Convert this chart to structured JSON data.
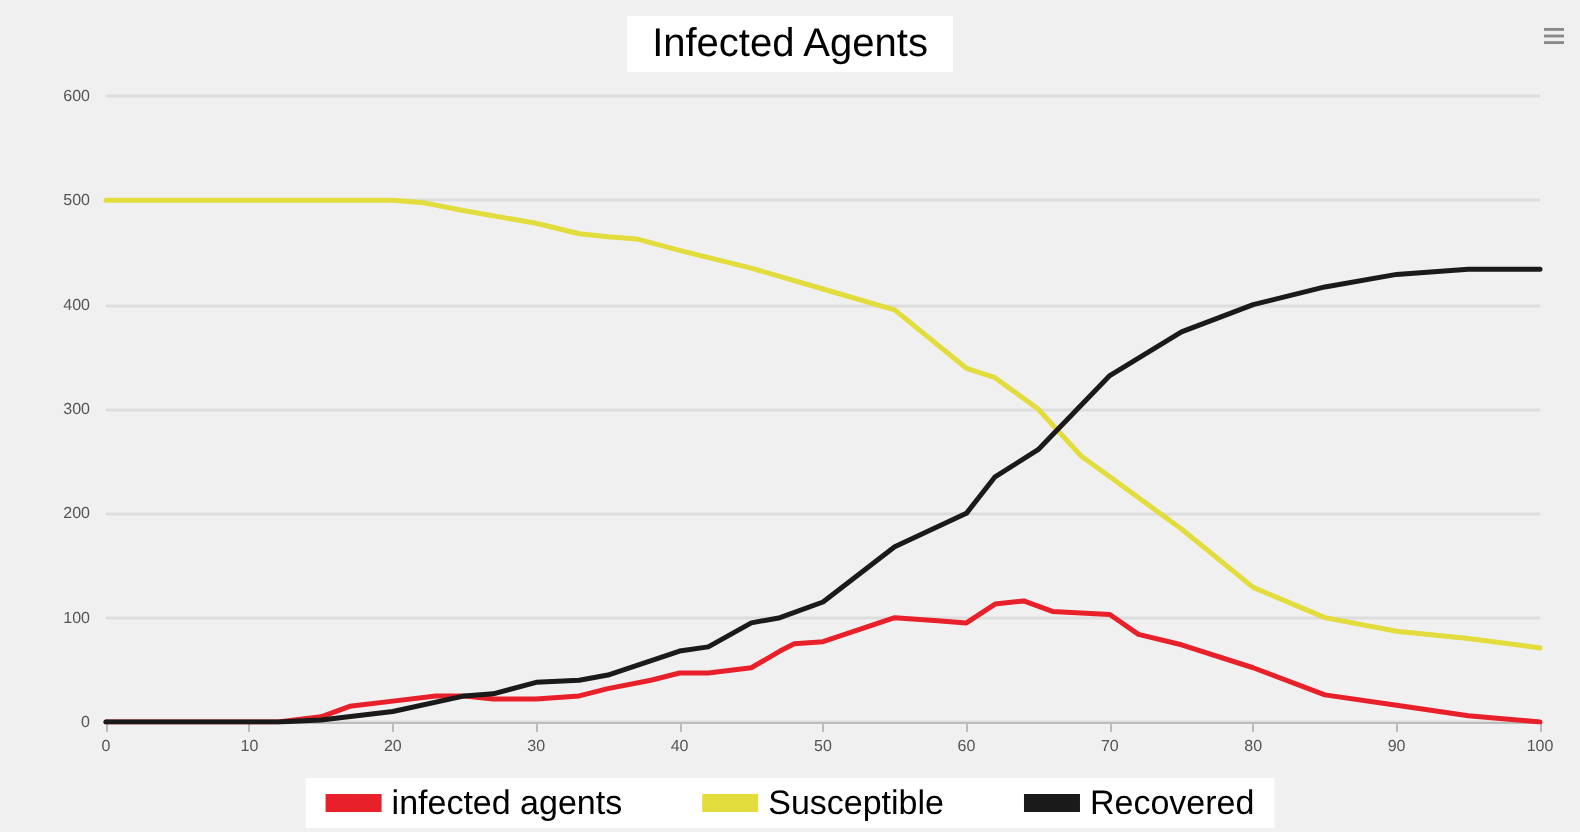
{
  "chart_data": {
    "type": "line",
    "title": "Infected Agents",
    "xlim": [
      0,
      100
    ],
    "xticks": [
      0,
      10,
      20,
      30,
      40,
      50,
      60,
      70,
      80,
      90,
      100
    ],
    "ylim": [
      0,
      600
    ],
    "yticks": [
      0,
      100,
      200,
      300,
      400,
      500,
      600
    ],
    "grid": "y",
    "legend": "bottom",
    "marker": "none",
    "line_style": "solid",
    "series": [
      {
        "name": "infected agents",
        "color": "#e8202a",
        "x": [
          0,
          12,
          15,
          17,
          20,
          23,
          25,
          27,
          30,
          33,
          35,
          38,
          40,
          42,
          45,
          47,
          48,
          50,
          55,
          58,
          60,
          62,
          64,
          66,
          70,
          72,
          75,
          80,
          85,
          90,
          95,
          100
        ],
        "values": [
          0,
          0,
          5,
          15,
          20,
          25,
          25,
          22,
          22,
          25,
          32,
          40,
          47,
          47,
          52,
          68,
          75,
          77,
          100,
          97,
          95,
          113,
          116,
          106,
          103,
          84,
          74,
          52,
          26,
          16,
          6,
          0
        ]
      },
      {
        "name": "Susceptible",
        "color": "#e2dc3c",
        "x": [
          0,
          10,
          20,
          22,
          25,
          30,
          33,
          35,
          37,
          40,
          45,
          50,
          55,
          60,
          62,
          65,
          68,
          70,
          75,
          80,
          85,
          90,
          95,
          100
        ],
        "values": [
          500,
          500,
          500,
          498,
          490,
          478,
          468,
          465,
          463,
          452,
          435,
          415,
          395,
          339,
          330,
          300,
          255,
          235,
          185,
          129,
          100,
          87,
          80,
          71
        ]
      },
      {
        "name": "Recovered",
        "color": "#1a1a1a",
        "x": [
          0,
          12,
          15,
          20,
          25,
          27,
          30,
          33,
          35,
          40,
          42,
          45,
          47,
          50,
          55,
          60,
          62,
          65,
          70,
          75,
          80,
          85,
          90,
          95,
          100
        ],
        "values": [
          0,
          0,
          2,
          10,
          25,
          27,
          38,
          40,
          45,
          68,
          72,
          95,
          100,
          115,
          168,
          200,
          235,
          261,
          332,
          374,
          400,
          417,
          429,
          434,
          434
        ]
      }
    ]
  }
}
